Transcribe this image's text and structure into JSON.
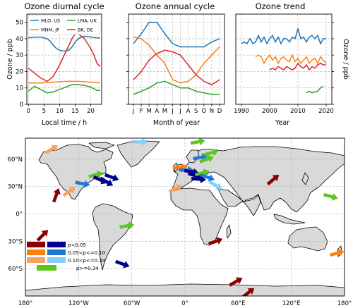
{
  "chart_data": [
    {
      "type": "line",
      "title": "Ozone diurnal cycle",
      "xlabel": "Local time / h",
      "ylabel": "Ozone / ppb",
      "xlim": [
        -0.5,
        23.5
      ],
      "ylim": [
        0,
        55
      ],
      "xticks": [
        0,
        5,
        10,
        15,
        20
      ],
      "yticks": [
        0,
        10,
        20,
        30,
        40,
        50
      ],
      "grid": true,
      "legend_placement": "top",
      "series": [
        {
          "name": "MLO, US",
          "color": "#1f77b4",
          "x": [
            0,
            2,
            4,
            6,
            7,
            8,
            9,
            10,
            11,
            12,
            13,
            14,
            15,
            16,
            17,
            18,
            20,
            22,
            23
          ],
          "y": [
            40.5,
            41,
            41,
            40,
            38.5,
            36,
            34,
            33,
            32.5,
            32.5,
            33,
            35,
            38,
            40,
            41,
            41.5,
            41,
            40.5,
            40.5
          ]
        },
        {
          "name": "MNM, JP",
          "color": "#ff7f0e",
          "x": [
            0,
            4,
            8,
            12,
            16,
            20,
            23
          ],
          "y": [
            13,
            13,
            13.5,
            14,
            14,
            13.5,
            13
          ]
        },
        {
          "name": "LMA, UK",
          "color": "#2ca02c",
          "x": [
            0,
            2,
            4,
            6,
            8,
            10,
            12,
            14,
            16,
            18,
            20,
            22,
            23
          ],
          "y": [
            8,
            11,
            9,
            7,
            7.5,
            9,
            10.5,
            12,
            12,
            11.5,
            10.5,
            8.5,
            8.5
          ]
        },
        {
          "name": "BK, DE",
          "color": "#d62728",
          "x": [
            0,
            2,
            4,
            6,
            8,
            10,
            12,
            14,
            15,
            16,
            18,
            20,
            21,
            22,
            23
          ],
          "y": [
            22,
            19,
            16,
            14,
            17,
            24,
            32,
            40,
            43,
            43,
            40,
            34,
            30,
            25,
            23
          ]
        }
      ]
    },
    {
      "type": "line",
      "title": "Ozone annual cycle",
      "xlabel": "Month of year",
      "ylabel": "",
      "categories": [
        "J",
        "F",
        "M",
        "A",
        "M",
        "J",
        "J",
        "A",
        "S",
        "O",
        "N",
        "D"
      ],
      "ylim": [
        0,
        55
      ],
      "grid": true,
      "series": [
        {
          "color": "#1f77b4",
          "y": [
            37,
            43,
            50,
            50,
            43,
            37,
            35,
            35,
            35,
            35,
            38,
            40
          ]
        },
        {
          "color": "#ff7f0e",
          "y": [
            41,
            40,
            36,
            30,
            25,
            15,
            13,
            14,
            18,
            25,
            30,
            35
          ]
        },
        {
          "color": "#2ca02c",
          "y": [
            6,
            8,
            10,
            13,
            14,
            12,
            10,
            10,
            8,
            7,
            6,
            6
          ]
        },
        {
          "color": "#d62728",
          "y": [
            15,
            20,
            27,
            31,
            33,
            32,
            30,
            24,
            18,
            14,
            12,
            15
          ]
        }
      ]
    },
    {
      "type": "line",
      "title": "Ozone trend",
      "xlabel": "Year",
      "ylabel": "Ozone / ppb",
      "xlim": [
        1988,
        2022
      ],
      "ylim": [
        0,
        55
      ],
      "xticks": [
        1990,
        2000,
        2010,
        2020
      ],
      "grid": true,
      "series": [
        {
          "color": "#1f77b4",
          "x": [
            1990,
            1991,
            1992,
            1993,
            1994,
            1995,
            1996,
            1997,
            1998,
            1999,
            2000,
            2001,
            2002,
            2003,
            2004,
            2005,
            2006,
            2007,
            2008,
            2009,
            2010,
            2011,
            2012,
            2013,
            2014,
            2015,
            2016,
            2017,
            2018,
            2019,
            2020
          ],
          "y": [
            37,
            38,
            37,
            40,
            37,
            38,
            42,
            38,
            41,
            37,
            40,
            42,
            38,
            41,
            37,
            40,
            40,
            38,
            41,
            40,
            46,
            40,
            41,
            38,
            41,
            42,
            40,
            42,
            37,
            40,
            40
          ]
        },
        {
          "color": "#ff7f0e",
          "x": [
            1995,
            1996,
            1997,
            1998,
            1999,
            2000,
            2001,
            2002,
            2003,
            2004,
            2005,
            2006,
            2007,
            2008,
            2009,
            2010,
            2011,
            2012,
            2013,
            2014,
            2015,
            2016,
            2017,
            2018,
            2019,
            2020
          ],
          "y": [
            29,
            30,
            29,
            25,
            28,
            30,
            27,
            29,
            25,
            28,
            29,
            27,
            26,
            30,
            26,
            28,
            25,
            27,
            29,
            25,
            27,
            28,
            25,
            29,
            27,
            25
          ]
        },
        {
          "color": "#d62728",
          "x": [
            2000,
            2001,
            2002,
            2003,
            2004,
            2005,
            2006,
            2007,
            2008,
            2009,
            2010,
            2011,
            2012,
            2013,
            2014,
            2015,
            2016,
            2017,
            2018,
            2019,
            2020
          ],
          "y": [
            21,
            22,
            21,
            23,
            22,
            21,
            23,
            22,
            21,
            22,
            25,
            23,
            22,
            24,
            21,
            23,
            22,
            24,
            25,
            24,
            24
          ]
        },
        {
          "color": "#2ca02c",
          "x": [
            2013,
            2014,
            2015,
            2016,
            2017,
            2018,
            2019
          ],
          "y": [
            7,
            8,
            7,
            7.5,
            8,
            10,
            11
          ]
        }
      ]
    },
    {
      "type": "map",
      "xticks": [
        "180°",
        "120°W",
        "60°W",
        "0°",
        "60°E",
        "120°E",
        "180°"
      ],
      "yticks": [
        "60°N",
        "30°N",
        "0°",
        "30°S",
        "60°S"
      ],
      "xlim": [
        -180,
        180
      ],
      "ylim": [
        -90,
        83
      ],
      "grid": true,
      "legend_placement": "bottom-left",
      "legend": [
        {
          "label": "p<0.05",
          "colors": [
            "#8b0000",
            "#00008b"
          ]
        },
        {
          "label": "0.05<p<=0.10",
          "colors": [
            "#ff7f0e",
            "#1f77d4"
          ]
        },
        {
          "label": "0.10<p<=0.34",
          "colors": [
            "#f4a460",
            "#87cefa"
          ]
        },
        {
          "label": "p>=0.34",
          "colors": [
            "#5cc71f"
          ]
        }
      ],
      "arrows": [
        {
          "lon": -160,
          "lat": -23,
          "angle": 45,
          "color": "#8b0000"
        },
        {
          "lon": -145,
          "lat": 21,
          "angle": 70,
          "color": "#8b0000"
        },
        {
          "lon": -150,
          "lat": 71,
          "angle": 30,
          "color": "#f4a460"
        },
        {
          "lon": -130,
          "lat": 25,
          "angle": 35,
          "color": "#f4a460"
        },
        {
          "lon": -100,
          "lat": 43,
          "angle": 15,
          "color": "#5cc71f"
        },
        {
          "lon": -95,
          "lat": 37,
          "angle": -25,
          "color": "#00008b"
        },
        {
          "lon": -88,
          "lat": 35,
          "angle": -30,
          "color": "#00008b"
        },
        {
          "lon": -82,
          "lat": 40,
          "angle": -20,
          "color": "#00008b"
        },
        {
          "lon": -115,
          "lat": 33,
          "angle": -10,
          "color": "#1f77d4"
        },
        {
          "lon": -50,
          "lat": 79,
          "angle": 0,
          "color": "#87cefa"
        },
        {
          "lon": -65,
          "lat": -13,
          "angle": 10,
          "color": "#5cc71f"
        },
        {
          "lon": -70,
          "lat": -55,
          "angle": -20,
          "color": "#00008b"
        },
        {
          "lon": 15,
          "lat": 79,
          "angle": 10,
          "color": "#5cc71f"
        },
        {
          "lon": 18,
          "lat": 62,
          "angle": 10,
          "color": "#1f77d4"
        },
        {
          "lon": 25,
          "lat": 60,
          "angle": 20,
          "color": "#5cc71f"
        },
        {
          "lon": 30,
          "lat": 67,
          "angle": 15,
          "color": "#5cc71f"
        },
        {
          "lon": -5,
          "lat": 51,
          "angle": 5,
          "color": "#ff7f0e"
        },
        {
          "lon": 2,
          "lat": 48,
          "angle": 0,
          "color": "#1f77d4"
        },
        {
          "lon": 8,
          "lat": 46,
          "angle": -10,
          "color": "#00008b"
        },
        {
          "lon": 12,
          "lat": 42,
          "angle": -15,
          "color": "#00008b"
        },
        {
          "lon": 20,
          "lat": 45,
          "angle": 15,
          "color": "#5cc71f"
        },
        {
          "lon": 16,
          "lat": 38,
          "angle": -5,
          "color": "#00008b"
        },
        {
          "lon": 26,
          "lat": 40,
          "angle": -20,
          "color": "#1f77d4"
        },
        {
          "lon": 35,
          "lat": 31,
          "angle": -30,
          "color": "#87cefa"
        },
        {
          "lon": -10,
          "lat": 28,
          "angle": 25,
          "color": "#f4a460"
        },
        {
          "lon": 35,
          "lat": -30,
          "angle": 20,
          "color": "#8b0000"
        },
        {
          "lon": 58,
          "lat": -74,
          "angle": 30,
          "color": "#8b0000"
        },
        {
          "lon": 72,
          "lat": -86,
          "angle": 38,
          "color": "#8b0000"
        },
        {
          "lon": 100,
          "lat": 38,
          "angle": 40,
          "color": "#8b0000"
        },
        {
          "lon": 165,
          "lat": 19,
          "angle": -15,
          "color": "#5cc71f"
        },
        {
          "lon": 172,
          "lat": -43,
          "angle": 15,
          "color": "#ff7f0e"
        }
      ]
    }
  ]
}
